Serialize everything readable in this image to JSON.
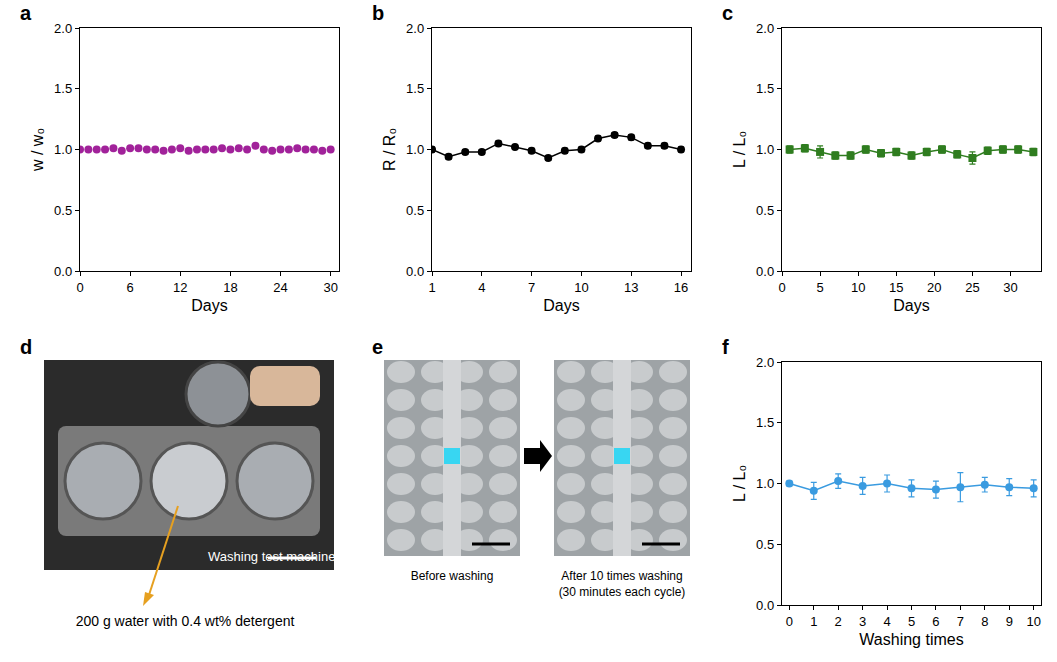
{
  "chart_data": [
    {
      "title": "a",
      "type": "scatter",
      "x_label": "Days",
      "y_label": "w / w₀",
      "x": [
        0,
        1,
        2,
        3,
        4,
        5,
        6,
        7,
        8,
        9,
        10,
        11,
        12,
        13,
        14,
        15,
        16,
        17,
        18,
        19,
        20,
        21,
        22,
        23,
        24,
        25,
        26,
        27,
        28,
        29,
        30
      ],
      "values": [
        1.0,
        1.0,
        1.0,
        1.0,
        1.01,
        0.99,
        1.01,
        1.01,
        1.0,
        1.0,
        0.99,
        1.0,
        1.01,
        0.99,
        1.0,
        1.0,
        1.0,
        1.01,
        1.0,
        1.01,
        1.0,
        1.03,
        1.0,
        0.99,
        1.0,
        1.0,
        1.01,
        1.0,
        1.0,
        0.99,
        1.0
      ],
      "color": "#a1229a",
      "marker": "circle",
      "xlim": [
        0,
        31
      ],
      "xticks": [
        0,
        6,
        12,
        18,
        24,
        30
      ],
      "ylim": [
        0,
        2
      ],
      "yticks": [
        {
          "value": 0,
          "label": "0.0"
        },
        0.5,
        {
          "value": 1,
          "label": "1.0"
        },
        1.5,
        {
          "value": 2,
          "label": "2.0"
        }
      ],
      "grid": false
    },
    {
      "title": "b",
      "type": "line",
      "x_label": "Days",
      "y_label": "R / R₀",
      "x": [
        1,
        2,
        3,
        4,
        5,
        6,
        7,
        8,
        9,
        10,
        11,
        12,
        13,
        14,
        15,
        16
      ],
      "values": [
        1.0,
        0.94,
        0.98,
        0.98,
        1.05,
        1.02,
        0.99,
        0.93,
        0.99,
        1.0,
        1.09,
        1.12,
        1.1,
        1.03,
        1.03,
        1.0
      ],
      "errors": [
        0.02,
        0.02,
        0.02,
        0.02,
        0.02,
        0.02,
        0.02,
        0.02,
        0.02,
        0.02,
        0.02,
        0.02,
        0.02,
        0.02,
        0.02,
        0.02
      ],
      "color": "#000000",
      "marker": "circle",
      "line_style": "solid",
      "xlim": [
        1,
        16.6
      ],
      "xticks": [
        1,
        4,
        7,
        10,
        13,
        16
      ],
      "ylim": [
        0,
        2
      ],
      "yticks": [
        {
          "value": 0,
          "label": "0.0"
        },
        0.5,
        {
          "value": 1,
          "label": "1.0"
        },
        1.5,
        {
          "value": 2,
          "label": "2.0"
        }
      ],
      "grid": false
    },
    {
      "title": "c",
      "type": "line",
      "x_label": "Days",
      "y_label": "L / L₀",
      "x": [
        1,
        3,
        5,
        7,
        9,
        11,
        13,
        15,
        17,
        19,
        21,
        23,
        25,
        27,
        29,
        31,
        33
      ],
      "values": [
        1.0,
        1.01,
        0.98,
        0.95,
        0.95,
        1.0,
        0.97,
        0.98,
        0.95,
        0.98,
        1.0,
        0.96,
        0.93,
        0.99,
        1.0,
        1.0,
        0.98
      ],
      "errors": [
        0.03,
        0.03,
        0.05,
        0.03,
        0.03,
        0.03,
        0.03,
        0.03,
        0.03,
        0.03,
        0.03,
        0.03,
        0.05,
        0.03,
        0.03,
        0.03,
        0.03
      ],
      "color": "#2f7d1f",
      "marker": "square",
      "line_style": "solid",
      "xlim": [
        0,
        34
      ],
      "xticks": [
        0,
        5,
        10,
        15,
        20,
        25,
        30
      ],
      "ylim": [
        0,
        2
      ],
      "yticks": [
        {
          "value": 0,
          "label": "0.0"
        },
        0.5,
        {
          "value": 1,
          "label": "1.0"
        },
        1.5,
        {
          "value": 2,
          "label": "2.0"
        }
      ],
      "grid": false
    },
    {
      "title": "f",
      "type": "line",
      "x_label": "Washing times",
      "y_label": "L / L₀",
      "x": [
        0,
        1,
        2,
        3,
        4,
        5,
        6,
        7,
        8,
        9,
        10
      ],
      "values": [
        1.0,
        0.94,
        1.02,
        0.98,
        1.0,
        0.96,
        0.95,
        0.97,
        0.99,
        0.97,
        0.96
      ],
      "errors": [
        0.02,
        0.07,
        0.06,
        0.07,
        0.07,
        0.07,
        0.07,
        0.12,
        0.06,
        0.07,
        0.07
      ],
      "color": "#3a9be0",
      "marker": "circle",
      "line_style": "solid",
      "xlim": [
        -0.3,
        10.3
      ],
      "xticks": [
        0,
        1,
        2,
        3,
        4,
        5,
        6,
        7,
        8,
        9,
        10
      ],
      "ylim": [
        0,
        2
      ],
      "yticks": [
        {
          "value": 0,
          "label": "0.0"
        },
        0.5,
        {
          "value": 1,
          "label": "1.0"
        },
        1.5,
        {
          "value": 2,
          "label": "2.0"
        }
      ],
      "grid": false
    }
  ],
  "panels": {
    "d": {
      "label": "d",
      "caption": "Washing test machine",
      "annotation": "200 g water with 0.4 wt% detergent"
    },
    "e": {
      "label": "e",
      "images": [
        {
          "caption": "Before washing"
        },
        {
          "caption": "After 10 times washing",
          "note": "(30 minutes each cycle)"
        }
      ]
    }
  }
}
